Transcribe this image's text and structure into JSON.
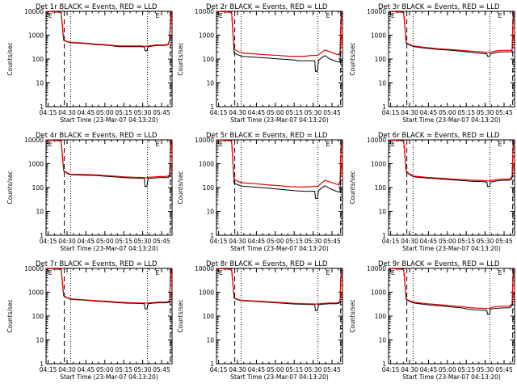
{
  "figure": {
    "xtick_labels": [
      "04:15",
      "04:30",
      "04:45",
      "05:00",
      "05:15",
      "05:30",
      "05:45"
    ],
    "xlabel": "Start Time (23-Mar-07 04:13:20)",
    "ylabel": "Counts/sec",
    "ytick_labels": [
      "1",
      "10",
      "100",
      "1000",
      "10000"
    ],
    "series_colors": {
      "events": "#000000",
      "lld": "#e00000"
    },
    "dashed_lines_min": [
      14.5,
      98.5
    ],
    "dotted_lines_min": [
      19.5,
      80.5
    ],
    "top_marker_label": "E"
  },
  "chart_data": [
    {
      "type": "line",
      "title": "Det 1r BLACK = Events, RED = LLD",
      "xlabel": "Start Time (23-Mar-07 04:13:20)",
      "ylabel": "Counts/sec",
      "ylog": true,
      "ylim": [
        1,
        10000
      ],
      "xlim_minutes": [
        0,
        100
      ],
      "x_minutes": [
        0,
        12,
        14,
        17,
        20,
        30,
        40,
        50,
        58,
        62,
        65,
        70,
        75,
        78,
        78.5,
        80,
        81,
        86,
        90,
        95,
        97,
        98,
        99,
        100
      ],
      "series": [
        {
          "values": [
            10000,
            9000,
            600,
            520,
            480,
            450,
            400,
            370,
            330,
            330,
            330,
            330,
            330,
            320,
            220,
            220,
            330,
            360,
            370,
            370,
            400,
            600,
            8000,
            10000
          ]
        },
        {
          "values": [
            10000,
            9000,
            620,
            540,
            500,
            470,
            420,
            390,
            350,
            350,
            350,
            350,
            350,
            340,
            340,
            340,
            350,
            380,
            390,
            390,
            420,
            650,
            8500,
            10000
          ]
        }
      ]
    },
    {
      "type": "line",
      "title": "Det 2r BLACK = Events, RED = LLD",
      "xlabel": "Start Time (23-Mar-07 04:13:20)",
      "ylabel": "Counts/sec",
      "ylog": true,
      "ylim": [
        1,
        10000
      ],
      "xlim_minutes": [
        0,
        100
      ],
      "x_minutes": [
        0,
        12,
        14,
        17,
        20,
        30,
        40,
        50,
        58,
        62,
        65,
        70,
        75,
        78,
        78.5,
        80,
        81,
        86,
        90,
        95,
        97,
        98,
        99,
        100
      ],
      "series": [
        {
          "values": [
            10000,
            9000,
            180,
            150,
            130,
            120,
            110,
            100,
            95,
            90,
            85,
            85,
            85,
            85,
            30,
            30,
            90,
            140,
            100,
            80,
            75,
            75,
            8000,
            10000
          ]
        },
        {
          "values": [
            10000,
            9000,
            260,
            210,
            180,
            165,
            150,
            140,
            130,
            130,
            130,
            130,
            140,
            140,
            140,
            140,
            150,
            240,
            200,
            160,
            150,
            200,
            8500,
            10000
          ]
        }
      ]
    },
    {
      "type": "line",
      "title": "Det 3r BLACK = Events, RED = LLD",
      "xlabel": "Start Time (23-Mar-07 04:13:20)",
      "ylabel": "Counts/sec",
      "ylog": true,
      "ylim": [
        1,
        10000
      ],
      "xlim_minutes": [
        0,
        100
      ],
      "x_minutes": [
        0,
        12,
        14,
        17,
        20,
        30,
        40,
        50,
        58,
        62,
        65,
        70,
        75,
        78,
        78.5,
        80,
        81,
        86,
        90,
        95,
        97,
        98,
        99,
        100
      ],
      "series": [
        {
          "values": [
            10000,
            9000,
            450,
            380,
            330,
            280,
            250,
            230,
            210,
            200,
            190,
            180,
            170,
            165,
            130,
            130,
            165,
            190,
            200,
            200,
            200,
            200,
            8000,
            10000
          ]
        },
        {
          "values": [
            10000,
            9000,
            480,
            400,
            350,
            300,
            270,
            250,
            230,
            220,
            215,
            205,
            195,
            190,
            190,
            190,
            195,
            220,
            230,
            230,
            230,
            250,
            8500,
            10000
          ]
        }
      ]
    },
    {
      "type": "line",
      "title": "Det 4r BLACK = Events, RED = LLD",
      "xlabel": "Start Time (23-Mar-07 04:13:20)",
      "ylabel": "Counts/sec",
      "ylog": true,
      "ylim": [
        1,
        10000
      ],
      "xlim_minutes": [
        0,
        100
      ],
      "x_minutes": [
        0,
        12,
        14,
        17,
        20,
        30,
        40,
        50,
        58,
        62,
        65,
        70,
        75,
        78,
        78.5,
        80,
        81,
        86,
        90,
        95,
        97,
        98,
        99,
        100
      ],
      "series": [
        {
          "values": [
            10000,
            9000,
            500,
            380,
            340,
            330,
            320,
            290,
            270,
            260,
            255,
            250,
            245,
            240,
            110,
            110,
            240,
            250,
            260,
            260,
            260,
            300,
            8000,
            10000
          ]
        },
        {
          "values": [
            10000,
            9000,
            520,
            400,
            360,
            350,
            340,
            310,
            290,
            280,
            275,
            270,
            265,
            260,
            260,
            260,
            265,
            280,
            290,
            290,
            300,
            350,
            8500,
            10000
          ]
        }
      ]
    },
    {
      "type": "line",
      "title": "Det 5r BLACK = Events, RED = LLD",
      "xlabel": "Start Time (23-Mar-07 04:13:20)",
      "ylabel": "Counts/sec",
      "ylog": true,
      "ylim": [
        1,
        10000
      ],
      "xlim_minutes": [
        0,
        100
      ],
      "x_minutes": [
        0,
        12,
        14,
        17,
        20,
        30,
        40,
        50,
        58,
        62,
        65,
        70,
        75,
        78,
        78.5,
        80,
        81,
        86,
        90,
        95,
        97,
        98,
        99,
        100
      ],
      "series": [
        {
          "values": [
            10000,
            9000,
            150,
            130,
            115,
            105,
            95,
            85,
            78,
            74,
            72,
            70,
            70,
            70,
            35,
            35,
            75,
            120,
            90,
            70,
            65,
            65,
            8000,
            10000
          ]
        },
        {
          "values": [
            10000,
            9000,
            220,
            180,
            160,
            145,
            130,
            120,
            110,
            108,
            106,
            105,
            110,
            112,
            112,
            112,
            120,
            200,
            170,
            140,
            130,
            180,
            8500,
            10000
          ]
        }
      ]
    },
    {
      "type": "line",
      "title": "Det 6r BLACK = Events, RED = LLD",
      "xlabel": "Start Time (23-Mar-07 04:13:20)",
      "ylabel": "Counts/sec",
      "ylog": true,
      "ylim": [
        1,
        10000
      ],
      "xlim_minutes": [
        0,
        100
      ],
      "x_minutes": [
        0,
        12,
        14,
        17,
        20,
        30,
        40,
        50,
        58,
        62,
        65,
        70,
        75,
        78,
        78.5,
        80,
        81,
        86,
        90,
        95,
        97,
        98,
        99,
        100
      ],
      "series": [
        {
          "values": [
            10000,
            9000,
            450,
            340,
            280,
            250,
            230,
            210,
            195,
            190,
            185,
            180,
            175,
            170,
            110,
            110,
            170,
            190,
            200,
            200,
            210,
            250,
            8000,
            10000
          ]
        },
        {
          "values": [
            10000,
            9000,
            480,
            360,
            300,
            270,
            250,
            230,
            215,
            210,
            205,
            200,
            195,
            190,
            190,
            190,
            195,
            215,
            225,
            225,
            240,
            300,
            8500,
            10000
          ]
        }
      ]
    },
    {
      "type": "line",
      "title": "Det 7r BLACK = Events, RED = LLD",
      "xlabel": "Start Time (23-Mar-07 04:13:20)",
      "ylabel": "Counts/sec",
      "ylog": true,
      "ylim": [
        1,
        10000
      ],
      "xlim_minutes": [
        0,
        100
      ],
      "x_minutes": [
        0,
        12,
        14,
        17,
        20,
        30,
        40,
        50,
        58,
        62,
        65,
        70,
        75,
        78,
        78.5,
        80,
        81,
        86,
        90,
        95,
        97,
        98,
        99,
        100
      ],
      "series": [
        {
          "values": [
            10000,
            9000,
            700,
            560,
            500,
            460,
            420,
            390,
            360,
            350,
            345,
            340,
            335,
            330,
            200,
            200,
            330,
            350,
            360,
            360,
            370,
            400,
            8000,
            10000
          ]
        },
        {
          "values": [
            10000,
            9000,
            730,
            580,
            520,
            480,
            440,
            410,
            380,
            370,
            365,
            360,
            355,
            350,
            350,
            350,
            355,
            375,
            385,
            385,
            400,
            450,
            8500,
            10000
          ]
        }
      ]
    },
    {
      "type": "line",
      "title": "Det 8r BLACK = Events, RED = LLD",
      "xlabel": "Start Time (23-Mar-07 04:13:20)",
      "ylabel": "Counts/sec",
      "ylog": true,
      "ylim": [
        1,
        10000
      ],
      "xlim_minutes": [
        0,
        100
      ],
      "x_minutes": [
        0,
        12,
        14,
        17,
        20,
        30,
        40,
        50,
        58,
        62,
        65,
        70,
        75,
        78,
        78.5,
        80,
        81,
        86,
        90,
        95,
        97,
        98,
        99,
        100
      ],
      "series": [
        {
          "values": [
            10000,
            9000,
            550,
            480,
            440,
            410,
            380,
            350,
            330,
            320,
            315,
            310,
            305,
            300,
            170,
            170,
            300,
            320,
            330,
            330,
            340,
            380,
            8000,
            10000
          ]
        },
        {
          "values": [
            10000,
            9000,
            580,
            500,
            460,
            430,
            400,
            370,
            350,
            340,
            335,
            330,
            325,
            320,
            320,
            320,
            325,
            345,
            355,
            355,
            370,
            430,
            8500,
            10000
          ]
        }
      ]
    },
    {
      "type": "line",
      "title": "Det 9r BLACK = Events, RED = LLD",
      "xlabel": "Start Time (23-Mar-07 04:13:20)",
      "ylabel": "Counts/sec",
      "ylog": true,
      "ylim": [
        1,
        10000
      ],
      "xlim_minutes": [
        0,
        100
      ],
      "x_minutes": [
        0,
        12,
        14,
        17,
        20,
        30,
        40,
        50,
        58,
        62,
        65,
        70,
        75,
        78,
        78.5,
        80,
        81,
        86,
        90,
        95,
        97,
        98,
        99,
        100
      ],
      "series": [
        {
          "values": [
            10000,
            9000,
            500,
            400,
            350,
            300,
            270,
            240,
            220,
            200,
            190,
            180,
            175,
            170,
            120,
            120,
            200,
            210,
            220,
            220,
            240,
            280,
            8000,
            10000
          ]
        },
        {
          "values": [
            10000,
            9000,
            520,
            430,
            380,
            330,
            300,
            270,
            250,
            235,
            225,
            215,
            210,
            205,
            205,
            205,
            230,
            250,
            260,
            260,
            280,
            330,
            8500,
            10000
          ]
        }
      ]
    }
  ]
}
